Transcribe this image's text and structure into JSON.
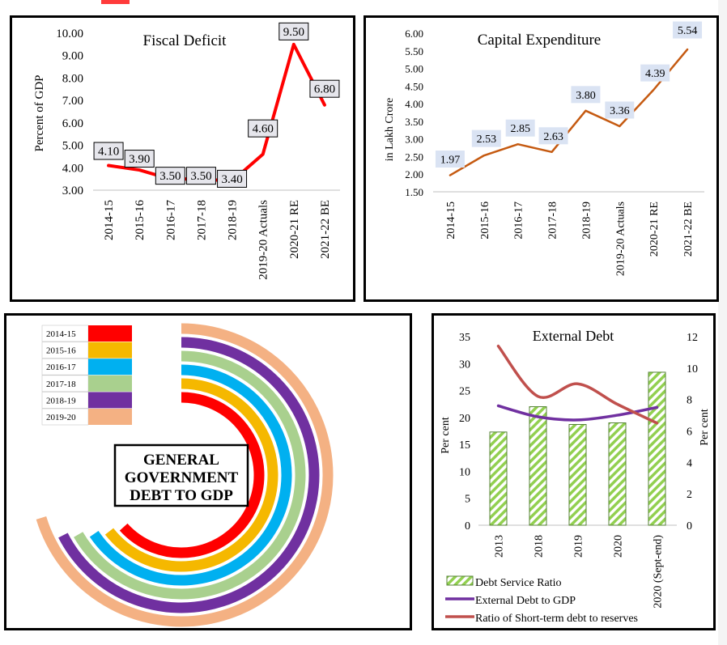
{
  "chart_data": [
    {
      "type": "line",
      "title": "Fiscal Deficit",
      "ylabel": "Percent of GDP",
      "categories": [
        "2014-15",
        "2015-16",
        "2016-17",
        "2017-18",
        "2018-19",
        "2019-20 Actuals",
        "2020-21 RE",
        "2021-22 BE"
      ],
      "values": [
        4.1,
        3.9,
        3.5,
        3.5,
        3.4,
        4.6,
        9.5,
        6.8
      ],
      "value_labels": [
        "4.10",
        "3.90",
        "3.50",
        "3.50",
        "3.40",
        "4.60",
        "9.50",
        "6.80"
      ],
      "yticks": [
        "3.00",
        "4.00",
        "5.00",
        "6.00",
        "7.00",
        "8.00",
        "9.00",
        "10.00"
      ],
      "ylim": [
        3,
        10
      ],
      "line_color": "#ff0000"
    },
    {
      "type": "line",
      "title": "Capital Expenditure",
      "ylabel": "in Lakh Crore",
      "categories": [
        "2014-15",
        "2015-16",
        "2016-17",
        "2017-18",
        "2018-19",
        "2019-20 Actuals",
        "2020-21 RE",
        "2021-22 BE"
      ],
      "values": [
        1.97,
        2.53,
        2.85,
        2.63,
        3.8,
        3.36,
        4.39,
        5.54
      ],
      "value_labels": [
        "1.97",
        "2.53",
        "2.85",
        "2.63",
        "3.80",
        "3.36",
        "4.39",
        "5.54"
      ],
      "yticks": [
        "1.50",
        "2.00",
        "2.50",
        "3.00",
        "3.50",
        "4.00",
        "4.50",
        "5.00",
        "5.50",
        "6.00"
      ],
      "ylim": [
        1.5,
        6
      ],
      "line_color": "#c55a11",
      "label_bg": "#dae3f3"
    },
    {
      "type": "radial-bar",
      "title": "GENERAL GOVERNMENT DEBT TO GDP",
      "legend": [
        {
          "name": "2014-15",
          "color": "#ff0000"
        },
        {
          "name": "2015-16",
          "color": "#f5b800"
        },
        {
          "name": "2016-17",
          "color": "#00b0f0"
        },
        {
          "name": "2017-18",
          "color": "#a9d08e"
        },
        {
          "name": "2018-19",
          "color": "#7030a0"
        },
        {
          "name": "2019-20",
          "color": "#f4b183"
        }
      ],
      "sweep_degrees": [
        228,
        232,
        236,
        240,
        243,
        253
      ]
    },
    {
      "type": "bar",
      "title": "External Debt",
      "ylabel": "Per cent",
      "y2label": "Per cent",
      "categories": [
        "2013",
        "2018",
        "2019",
        "2020",
        "2020 (Sept-end)"
      ],
      "yticks": [
        "0",
        "5",
        "10",
        "15",
        "20",
        "25",
        "30",
        "35"
      ],
      "y2ticks": [
        "0",
        "2",
        "4",
        "6",
        "8",
        "10",
        "12"
      ],
      "ylim": [
        0,
        35
      ],
      "y2lim": [
        0,
        12
      ],
      "series": [
        {
          "name": "Debt Service Ratio",
          "kind": "bar",
          "axis": "left",
          "values": [
            17.3,
            22.0,
            18.7,
            19.0,
            28.4
          ],
          "color": "#92d050"
        },
        {
          "name": "External Debt to GDP",
          "kind": "line",
          "axis": "right",
          "values": [
            7.6,
            6.9,
            6.7,
            7.0,
            7.5
          ],
          "color": "#7030a0"
        },
        {
          "name": "Ratio of Short-term debt to reserves",
          "kind": "line",
          "axis": "right",
          "values": [
            11.4,
            8.2,
            9.0,
            7.7,
            6.5
          ],
          "color": "#c0504d"
        }
      ]
    }
  ]
}
